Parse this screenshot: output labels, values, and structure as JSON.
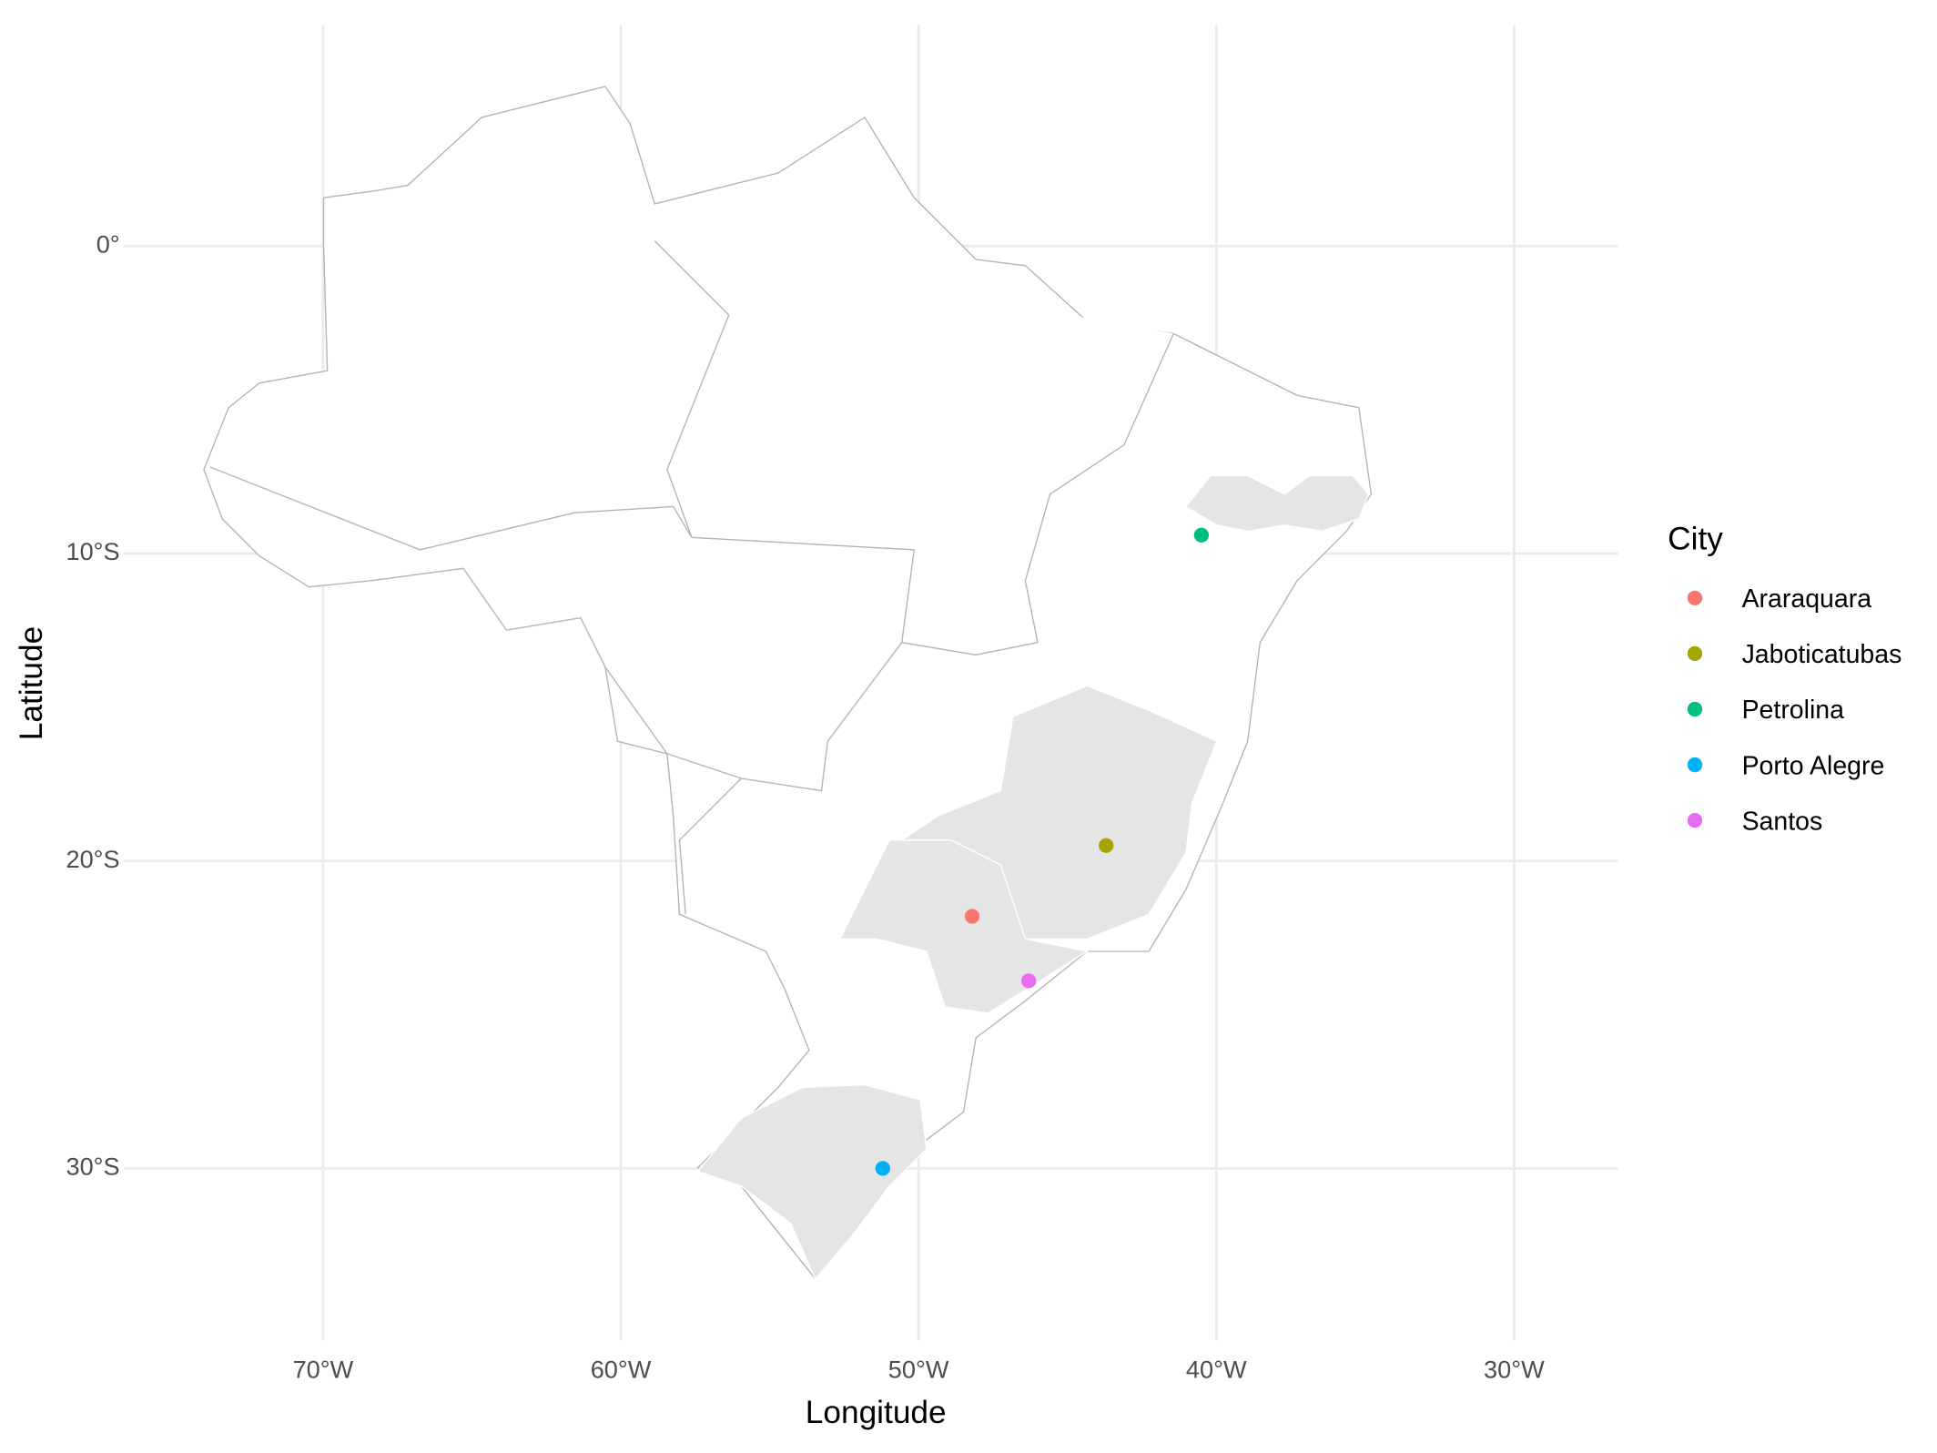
{
  "chart_data": {
    "type": "scatter",
    "xlabel": "Longitude",
    "ylabel": "Latitude",
    "legend_title": "City",
    "legend": "right",
    "grid": true,
    "xlim": [
      -76.7,
      -26.5
    ],
    "ylim": [
      -35.6,
      7.2
    ],
    "xticks": [
      {
        "value": -70,
        "label": "70°W"
      },
      {
        "value": -60,
        "label": "60°W"
      },
      {
        "value": -50,
        "label": "50°W"
      },
      {
        "value": -40,
        "label": "40°W"
      },
      {
        "value": -30,
        "label": "30°W"
      }
    ],
    "yticks": [
      {
        "value": 0,
        "label": "0°"
      },
      {
        "value": -10,
        "label": "10°S"
      },
      {
        "value": -20,
        "label": "20°S"
      },
      {
        "value": -30,
        "label": "30°S"
      }
    ],
    "series": [
      {
        "name": "Araraquara",
        "color": "#F8766D",
        "x": [
          -48.2
        ],
        "values": [
          -21.8
        ]
      },
      {
        "name": "Jaboticatubas",
        "color": "#A3A500",
        "x": [
          -43.7
        ],
        "values": [
          -19.5
        ]
      },
      {
        "name": "Petrolina",
        "color": "#00BF7D",
        "x": [
          -40.5
        ],
        "values": [
          -9.4
        ]
      },
      {
        "name": "Porto Alegre",
        "color": "#00B0F6",
        "x": [
          -51.2
        ],
        "values": [
          -30.0
        ]
      },
      {
        "name": "Santos",
        "color": "#E76BF3",
        "x": [
          -46.3
        ],
        "values": [
          -23.9
        ]
      }
    ]
  }
}
